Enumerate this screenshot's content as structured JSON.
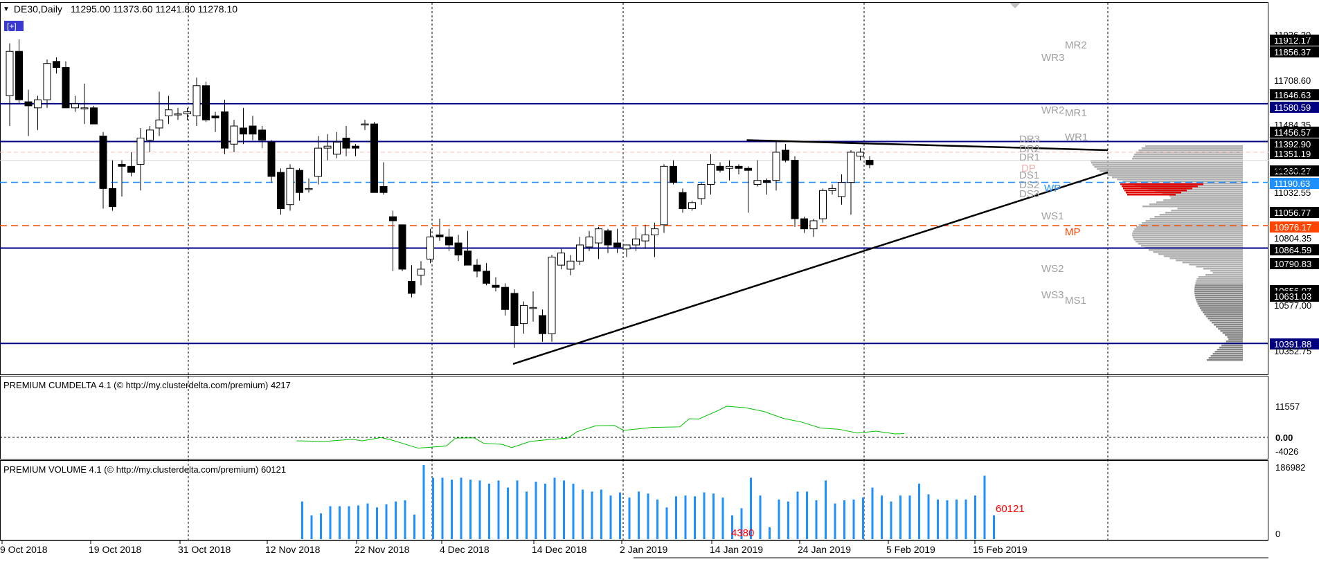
{
  "header": {
    "symbol": "DE30,Daily",
    "ohlc": "11295.00 11373.60 11241.80 11278.10"
  },
  "colors": {
    "background": "#ffffff",
    "grid": "#000000",
    "level_line": "#000080",
    "price_tag": "#000000",
    "wp": "#1e90ff",
    "mp": "#ff4500",
    "cumdelta": "#00c000",
    "volume": "#1e90ff",
    "pivot_text": "#a0a0a0"
  },
  "price_axis": {
    "labels": [
      "11936.30",
      "11708.60",
      "11484.35",
      "11260.27",
      "11032.55",
      "10804.35",
      "10577.00",
      "10352.75"
    ],
    "tags": [
      {
        "text": "11912.17",
        "style": "black"
      },
      {
        "text": "11856.37",
        "style": "black"
      },
      {
        "text": "11646.63",
        "style": "black"
      },
      {
        "text": "11580.59",
        "style": "navy"
      },
      {
        "text": "11456.57",
        "style": "black"
      },
      {
        "text": "11392.90",
        "style": "black"
      },
      {
        "text": "11351.19",
        "style": "black"
      },
      {
        "text": "11260.27",
        "style": "black"
      },
      {
        "text": "11190.63",
        "style": "blue"
      },
      {
        "text": "11056.77",
        "style": "black"
      },
      {
        "text": "10976.17",
        "style": "orange"
      },
      {
        "text": "10864.59",
        "style": "black"
      },
      {
        "text": "10790.83",
        "style": "black"
      },
      {
        "text": "10656.07",
        "style": "black"
      },
      {
        "text": "10631.03",
        "style": "black"
      },
      {
        "text": "10391.88",
        "style": "navy"
      }
    ]
  },
  "pivots": [
    "MR2",
    "WR3",
    "WR2",
    "MR1",
    "WR1",
    "DR3",
    "DR2",
    "DR1",
    "DP",
    "DS1",
    "DS2",
    "WP",
    "DS3",
    "WS1",
    "MP",
    "WS2",
    "WS3",
    "MS1"
  ],
  "indicators": {
    "cumdelta": {
      "title": "PREMIUM CUMDELTA 4.1 (© http://my.clusterdelta.com/premium) 4217",
      "axis": [
        "11557",
        "0.00",
        "-4026"
      ]
    },
    "volume": {
      "title": "PREMIUM VOLUME 4.1 (© http://my.clusterdelta.com/premium) 60121",
      "axis": [
        "186982",
        "0"
      ],
      "last_value": "60121",
      "marker_value": "4380"
    }
  },
  "time_axis": [
    "9 Oct 2018",
    "19 Oct 2018",
    "31 Oct 2018",
    "12 Nov 2018",
    "22 Nov 2018",
    "4 Dec 2018",
    "14 Dec 2018",
    "2 Jan 2019",
    "14 Jan 2019",
    "24 Jan 2019",
    "5 Feb 2019",
    "15 Feb 2019"
  ],
  "chart_data": {
    "type": "candlestick",
    "symbol": "DE30",
    "timeframe": "Daily",
    "levels": [
      11580.59,
      11392.9,
      11190.63,
      10976.17,
      10864.59,
      10391.88
    ],
    "candles": [
      {
        "o": 11620,
        "h": 11880,
        "l": 11470,
        "c": 11840
      },
      {
        "o": 11840,
        "h": 11900,
        "l": 11580,
        "c": 11600
      },
      {
        "o": 11590,
        "h": 11650,
        "l": 11420,
        "c": 11570
      },
      {
        "o": 11560,
        "h": 11620,
        "l": 11450,
        "c": 11600
      },
      {
        "o": 11600,
        "h": 11800,
        "l": 11560,
        "c": 11780
      },
      {
        "o": 11790,
        "h": 11810,
        "l": 11730,
        "c": 11760
      },
      {
        "o": 11760,
        "h": 11790,
        "l": 11560,
        "c": 11560
      },
      {
        "o": 11560,
        "h": 11620,
        "l": 11540,
        "c": 11580
      },
      {
        "o": 11560,
        "h": 11680,
        "l": 11480,
        "c": 11560
      },
      {
        "o": 11560,
        "h": 11570,
        "l": 11480,
        "c": 11480
      },
      {
        "o": 11420,
        "h": 11440,
        "l": 11060,
        "c": 11160
      },
      {
        "o": 11160,
        "h": 11300,
        "l": 11050,
        "c": 11070
      },
      {
        "o": 11280,
        "h": 11300,
        "l": 11120,
        "c": 11270
      },
      {
        "o": 11270,
        "h": 11340,
        "l": 11220,
        "c": 11240
      },
      {
        "o": 11280,
        "h": 11460,
        "l": 11150,
        "c": 11410
      },
      {
        "o": 11400,
        "h": 11470,
        "l": 11340,
        "c": 11450
      },
      {
        "o": 11460,
        "h": 11640,
        "l": 11420,
        "c": 11500
      },
      {
        "o": 11520,
        "h": 11620,
        "l": 11480,
        "c": 11550
      },
      {
        "o": 11530,
        "h": 11560,
        "l": 11500,
        "c": 11530
      },
      {
        "o": 11530,
        "h": 11560,
        "l": 11500,
        "c": 11540
      },
      {
        "o": 11520,
        "h": 11710,
        "l": 11470,
        "c": 11670
      },
      {
        "o": 11670,
        "h": 11690,
        "l": 11490,
        "c": 11500
      },
      {
        "o": 11520,
        "h": 11540,
        "l": 11440,
        "c": 11510
      },
      {
        "o": 11540,
        "h": 11600,
        "l": 11330,
        "c": 11360
      },
      {
        "o": 11380,
        "h": 11500,
        "l": 11340,
        "c": 11470
      },
      {
        "o": 11460,
        "h": 11560,
        "l": 11380,
        "c": 11430
      },
      {
        "o": 11470,
        "h": 11520,
        "l": 11400,
        "c": 11430
      },
      {
        "o": 11450,
        "h": 11470,
        "l": 11360,
        "c": 11400
      },
      {
        "o": 11390,
        "h": 11400,
        "l": 11190,
        "c": 11220
      },
      {
        "o": 11240,
        "h": 11260,
        "l": 11030,
        "c": 11060
      },
      {
        "o": 11080,
        "h": 11280,
        "l": 11050,
        "c": 11260
      },
      {
        "o": 11250,
        "h": 11260,
        "l": 11100,
        "c": 11140
      },
      {
        "o": 11160,
        "h": 11210,
        "l": 11140,
        "c": 11160
      },
      {
        "o": 11220,
        "h": 11420,
        "l": 11180,
        "c": 11360
      },
      {
        "o": 11360,
        "h": 11430,
        "l": 11300,
        "c": 11370
      },
      {
        "o": 11330,
        "h": 11440,
        "l": 11310,
        "c": 11390
      },
      {
        "o": 11410,
        "h": 11470,
        "l": 11320,
        "c": 11360
      },
      {
        "o": 11370,
        "h": 11380,
        "l": 11320,
        "c": 11360
      },
      {
        "o": 11480,
        "h": 11500,
        "l": 11450,
        "c": 11480
      },
      {
        "o": 11480,
        "h": 11490,
        "l": 11140,
        "c": 11140
      },
      {
        "o": 11170,
        "h": 11290,
        "l": 11130,
        "c": 11140
      },
      {
        "o": 11020,
        "h": 11050,
        "l": 10750,
        "c": 11000
      },
      {
        "o": 10980,
        "h": 10980,
        "l": 10750,
        "c": 10760
      },
      {
        "o": 10700,
        "h": 10780,
        "l": 10620,
        "c": 10640
      },
      {
        "o": 10730,
        "h": 10800,
        "l": 10680,
        "c": 10760
      },
      {
        "o": 10810,
        "h": 10960,
        "l": 10790,
        "c": 10920
      },
      {
        "o": 10930,
        "h": 11010,
        "l": 10900,
        "c": 10920
      },
      {
        "o": 10920,
        "h": 10960,
        "l": 10850,
        "c": 10880
      },
      {
        "o": 10890,
        "h": 10930,
        "l": 10800,
        "c": 10830
      },
      {
        "o": 10850,
        "h": 10950,
        "l": 10780,
        "c": 10780
      },
      {
        "o": 10780,
        "h": 10810,
        "l": 10720,
        "c": 10750
      },
      {
        "o": 10750,
        "h": 10790,
        "l": 10680,
        "c": 10690
      },
      {
        "o": 10680,
        "h": 10720,
        "l": 10650,
        "c": 10670
      },
      {
        "o": 10670,
        "h": 10690,
        "l": 10530,
        "c": 10560
      },
      {
        "o": 10640,
        "h": 10660,
        "l": 10370,
        "c": 10480
      },
      {
        "o": 10490,
        "h": 10600,
        "l": 10440,
        "c": 10580
      },
      {
        "o": 10570,
        "h": 10650,
        "l": 10500,
        "c": 10570
      },
      {
        "o": 10530,
        "h": 10560,
        "l": 10400,
        "c": 10440
      },
      {
        "o": 10440,
        "h": 10830,
        "l": 10400,
        "c": 10820
      },
      {
        "o": 10780,
        "h": 10860,
        "l": 10760,
        "c": 10840
      },
      {
        "o": 10760,
        "h": 10830,
        "l": 10730,
        "c": 10800
      },
      {
        "o": 10800,
        "h": 10920,
        "l": 10780,
        "c": 10880
      },
      {
        "o": 10870,
        "h": 10950,
        "l": 10850,
        "c": 10920
      },
      {
        "o": 10890,
        "h": 10970,
        "l": 10810,
        "c": 10960
      },
      {
        "o": 10950,
        "h": 10960,
        "l": 10840,
        "c": 10880
      },
      {
        "o": 10890,
        "h": 10960,
        "l": 10840,
        "c": 10870
      },
      {
        "o": 10860,
        "h": 10880,
        "l": 10820,
        "c": 10880
      },
      {
        "o": 10880,
        "h": 10970,
        "l": 10850,
        "c": 10910
      },
      {
        "o": 10900,
        "h": 10980,
        "l": 10860,
        "c": 10930
      },
      {
        "o": 10930,
        "h": 10990,
        "l": 10820,
        "c": 10960
      },
      {
        "o": 10980,
        "h": 11280,
        "l": 10940,
        "c": 11270
      },
      {
        "o": 11270,
        "h": 11300,
        "l": 11180,
        "c": 11190
      },
      {
        "o": 11140,
        "h": 11160,
        "l": 11040,
        "c": 11060
      },
      {
        "o": 11060,
        "h": 11100,
        "l": 11050,
        "c": 11090
      },
      {
        "o": 11110,
        "h": 11190,
        "l": 11080,
        "c": 11180
      },
      {
        "o": 11180,
        "h": 11330,
        "l": 11130,
        "c": 11280
      },
      {
        "o": 11270,
        "h": 11290,
        "l": 11240,
        "c": 11250
      },
      {
        "o": 11260,
        "h": 11300,
        "l": 11200,
        "c": 11270
      },
      {
        "o": 11270,
        "h": 11280,
        "l": 11230,
        "c": 11260
      },
      {
        "o": 11260,
        "h": 11270,
        "l": 11040,
        "c": 11250
      },
      {
        "o": 11180,
        "h": 11300,
        "l": 11170,
        "c": 11200
      },
      {
        "o": 11200,
        "h": 11210,
        "l": 11130,
        "c": 11190
      },
      {
        "o": 11200,
        "h": 11390,
        "l": 11150,
        "c": 11340
      },
      {
        "o": 11350,
        "h": 11380,
        "l": 11290,
        "c": 11300
      },
      {
        "o": 11300,
        "h": 11320,
        "l": 10970,
        "c": 11010
      },
      {
        "o": 11010,
        "h": 11020,
        "l": 10940,
        "c": 10960
      },
      {
        "o": 10960,
        "h": 11010,
        "l": 10920,
        "c": 11000
      },
      {
        "o": 11010,
        "h": 11160,
        "l": 10990,
        "c": 11150
      },
      {
        "o": 11150,
        "h": 11180,
        "l": 11130,
        "c": 11160
      },
      {
        "o": 11120,
        "h": 11230,
        "l": 11080,
        "c": 11190
      },
      {
        "o": 11190,
        "h": 11350,
        "l": 11030,
        "c": 11340
      },
      {
        "o": 11320,
        "h": 11360,
        "l": 11300,
        "c": 11340
      },
      {
        "o": 11300,
        "h": 11320,
        "l": 11260,
        "c": 11278
      }
    ],
    "trendlines": [
      {
        "label": "support",
        "from": {
          "i": 54,
          "price": 10290
        },
        "to": {
          "i": 96,
          "price": 11240
        }
      },
      {
        "label": "resistance",
        "from": {
          "i": 79,
          "price": 11400
        },
        "to": {
          "i": 96,
          "price": 11350
        }
      }
    ],
    "cumdelta": [
      [
        30,
        -1300
      ],
      [
        33,
        -1500
      ],
      [
        36,
        -700
      ],
      [
        37,
        -1300
      ],
      [
        39,
        -100
      ],
      [
        40,
        -800
      ],
      [
        43,
        -4026
      ],
      [
        46,
        -3200
      ],
      [
        47,
        -300
      ],
      [
        49,
        -200
      ],
      [
        50,
        -2200
      ],
      [
        52,
        -2600
      ],
      [
        53,
        -3800
      ],
      [
        55,
        -1500
      ],
      [
        57,
        -800
      ],
      [
        59,
        -300
      ],
      [
        60,
        2100
      ],
      [
        62,
        4300
      ],
      [
        64,
        4400
      ],
      [
        65,
        2600
      ],
      [
        68,
        3700
      ],
      [
        71,
        3900
      ],
      [
        72,
        6900
      ],
      [
        73,
        6800
      ],
      [
        75,
        9800
      ],
      [
        76,
        11557
      ],
      [
        78,
        11000
      ],
      [
        80,
        9600
      ],
      [
        82,
        7100
      ],
      [
        84,
        5700
      ],
      [
        86,
        3500
      ],
      [
        88,
        3000
      ],
      [
        90,
        1600
      ],
      [
        92,
        2300
      ],
      [
        94,
        1300
      ],
      [
        95,
        1400
      ]
    ],
    "volume": [
      95000,
      60000,
      65000,
      83000,
      83000,
      83000,
      85000,
      90000,
      80000,
      88000,
      95000,
      98000,
      62000,
      186982,
      155000,
      155000,
      150000,
      155000,
      150000,
      148000,
      140000,
      148000,
      130000,
      148000,
      120000,
      145000,
      140000,
      155000,
      148000,
      140000,
      125000,
      120000,
      125000,
      110000,
      118000,
      105000,
      120000,
      115000,
      100000,
      80000,
      108000,
      110000,
      108000,
      118000,
      115000,
      105000,
      60000,
      78000,
      155000,
      110000,
      30000,
      100000,
      95000,
      120000,
      120000,
      98000,
      148000,
      90000,
      98000,
      100000,
      105000,
      130000,
      110000,
      95000,
      110000,
      110000,
      140000,
      113000,
      100000,
      98000,
      100000,
      100000,
      110000,
      160000,
      60121
    ]
  }
}
